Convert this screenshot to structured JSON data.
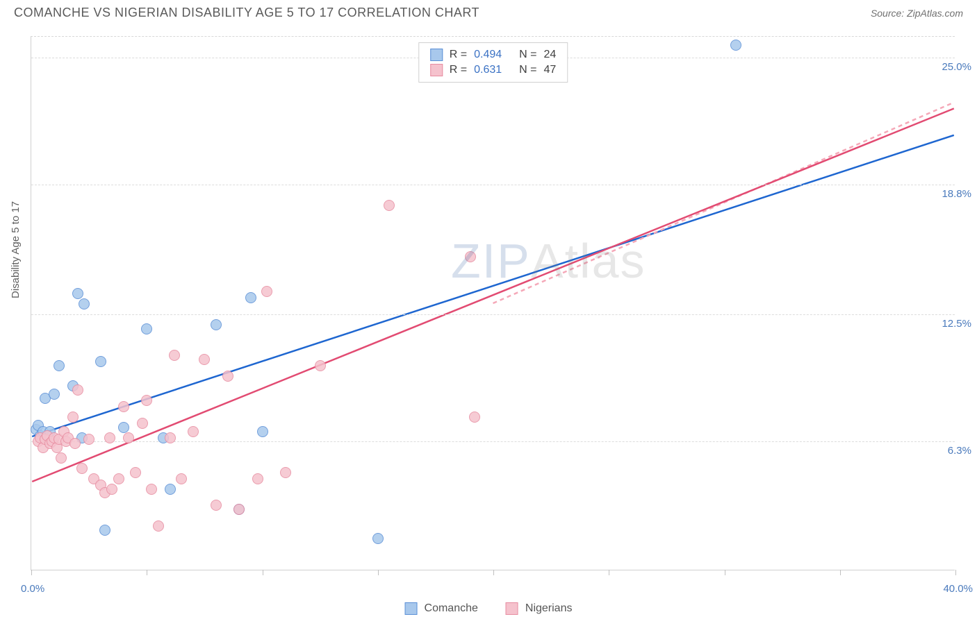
{
  "title": "COMANCHE VS NIGERIAN DISABILITY AGE 5 TO 17 CORRELATION CHART",
  "source": "Source: ZipAtlas.com",
  "ylabel": "Disability Age 5 to 17",
  "watermark": {
    "z": "ZIP",
    "rest": "Atlas"
  },
  "colors": {
    "blue_fill": "#a8c8ec",
    "blue_stroke": "#5a8fd6",
    "pink_fill": "#f5c2cd",
    "pink_stroke": "#e78ca0",
    "blue_line": "#1e66d0",
    "pink_line": "#e24b72",
    "pink_dash": "#f5a8b8",
    "axis_text": "#4a7abc",
    "grid": "#dcdcdc"
  },
  "chart": {
    "type": "scatter",
    "xlim": [
      0,
      40
    ],
    "ylim": [
      0,
      26
    ],
    "x_min_label": "0.0%",
    "x_max_label": "40.0%",
    "y_gridlines": [
      6.3,
      12.5,
      18.8,
      25.0
    ],
    "y_labels": [
      "6.3%",
      "12.5%",
      "18.8%",
      "25.0%"
    ],
    "x_ticks": [
      0,
      5,
      10,
      15,
      20,
      25,
      30,
      35,
      40
    ],
    "marker_radius": 8,
    "marker_opacity": 0.85,
    "line_width": 2.5
  },
  "series": [
    {
      "name": "Comanche",
      "color_fill": "#a8c8ec",
      "color_stroke": "#5a8fd6",
      "R": "0.494",
      "N": "24",
      "regression": {
        "x1": 0,
        "y1": 6.5,
        "x2": 40,
        "y2": 21.2,
        "dashed": false,
        "color": "#1e66d0"
      },
      "points": [
        [
          0.2,
          6.9
        ],
        [
          0.3,
          7.1
        ],
        [
          0.4,
          6.6
        ],
        [
          0.5,
          6.8
        ],
        [
          0.6,
          8.4
        ],
        [
          0.8,
          6.8
        ],
        [
          1.0,
          8.6
        ],
        [
          1.2,
          10.0
        ],
        [
          1.8,
          9.0
        ],
        [
          2.0,
          13.5
        ],
        [
          2.2,
          6.5
        ],
        [
          2.3,
          13.0
        ],
        [
          3.0,
          10.2
        ],
        [
          3.2,
          2.0
        ],
        [
          4.0,
          7.0
        ],
        [
          5.0,
          11.8
        ],
        [
          5.7,
          6.5
        ],
        [
          6.0,
          4.0
        ],
        [
          8.0,
          12.0
        ],
        [
          9.0,
          3.0
        ],
        [
          9.5,
          13.3
        ],
        [
          10.0,
          6.8
        ],
        [
          15.0,
          1.6
        ],
        [
          30.5,
          25.6
        ]
      ]
    },
    {
      "name": "Nigerians",
      "color_fill": "#f5c2cd",
      "color_stroke": "#e78ca0",
      "R": "0.631",
      "N": "47",
      "regression": {
        "x1": 0,
        "y1": 4.3,
        "x2": 40,
        "y2": 22.5,
        "dashed": false,
        "color": "#e24b72"
      },
      "regression_dash": {
        "x1": 20,
        "y1": 13.0,
        "x2": 40,
        "y2": 22.8,
        "color": "#f5a8b8"
      },
      "points": [
        [
          0.3,
          6.3
        ],
        [
          0.4,
          6.5
        ],
        [
          0.5,
          6.0
        ],
        [
          0.6,
          6.4
        ],
        [
          0.7,
          6.6
        ],
        [
          0.8,
          6.2
        ],
        [
          0.9,
          6.3
        ],
        [
          1.0,
          6.5
        ],
        [
          1.1,
          6.0
        ],
        [
          1.2,
          6.4
        ],
        [
          1.3,
          5.5
        ],
        [
          1.4,
          6.8
        ],
        [
          1.5,
          6.3
        ],
        [
          1.6,
          6.5
        ],
        [
          1.8,
          7.5
        ],
        [
          1.9,
          6.2
        ],
        [
          2.0,
          8.8
        ],
        [
          2.2,
          5.0
        ],
        [
          2.5,
          6.4
        ],
        [
          2.7,
          4.5
        ],
        [
          3.0,
          4.2
        ],
        [
          3.2,
          3.8
        ],
        [
          3.4,
          6.5
        ],
        [
          3.5,
          4.0
        ],
        [
          3.8,
          4.5
        ],
        [
          4.0,
          8.0
        ],
        [
          4.2,
          6.5
        ],
        [
          4.5,
          4.8
        ],
        [
          4.8,
          7.2
        ],
        [
          5.0,
          8.3
        ],
        [
          5.2,
          4.0
        ],
        [
          5.5,
          2.2
        ],
        [
          6.0,
          6.5
        ],
        [
          6.2,
          10.5
        ],
        [
          6.5,
          4.5
        ],
        [
          7.0,
          6.8
        ],
        [
          7.5,
          10.3
        ],
        [
          8.0,
          3.2
        ],
        [
          8.5,
          9.5
        ],
        [
          9.0,
          3.0
        ],
        [
          9.8,
          4.5
        ],
        [
          10.2,
          13.6
        ],
        [
          11.0,
          4.8
        ],
        [
          12.5,
          10.0
        ],
        [
          15.5,
          17.8
        ],
        [
          19.0,
          15.3
        ],
        [
          19.2,
          7.5
        ]
      ]
    }
  ],
  "legend_bottom": [
    "Comanche",
    "Nigerians"
  ],
  "legend_top_labels": {
    "R": "R =",
    "N": "N ="
  }
}
